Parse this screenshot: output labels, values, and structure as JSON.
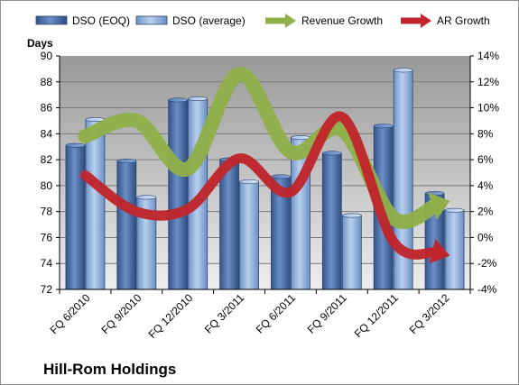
{
  "chart_data": {
    "type": "bar",
    "title": "Hill-Rom Holdings",
    "ylabel": "Days",
    "categories": [
      "FQ 6/2010",
      "FQ 9/2010",
      "FQ 12/2010",
      "FQ 3/2011",
      "FQ 6/2011",
      "FQ 9/2011",
      "FQ 12/2011",
      "FQ 3/2012"
    ],
    "ylim": [
      72,
      90
    ],
    "yticks": [
      "72",
      "74",
      "76",
      "78",
      "80",
      "82",
      "84",
      "86",
      "88",
      "90"
    ],
    "y2lim": [
      -0.04,
      0.14
    ],
    "y2ticks": [
      "-4%",
      "-2%",
      "0%",
      "2%",
      "4%",
      "6%",
      "8%",
      "10%",
      "12%",
      "14%"
    ],
    "series": [
      {
        "name": "DSO (EOQ)",
        "kind": "bar",
        "color": "#4A6FA5",
        "values": [
          83.1,
          81.9,
          86.6,
          82.0,
          80.7,
          82.5,
          84.6,
          79.4
        ]
      },
      {
        "name": "DSO (average)",
        "kind": "bar",
        "color": "#8FB0DC",
        "values": [
          85.1,
          79.1,
          86.7,
          80.3,
          83.7,
          77.7,
          88.9,
          78.1
        ]
      },
      {
        "name": "Revenue Growth",
        "kind": "line",
        "axis": "right",
        "color": "#8FAF4A",
        "values": [
          0.078,
          0.09,
          0.053,
          0.126,
          0.066,
          0.083,
          0.015,
          0.027
        ]
      },
      {
        "name": "AR Growth",
        "kind": "line",
        "axis": "right",
        "color": "#C0262C",
        "values": [
          0.048,
          0.02,
          0.022,
          0.061,
          0.035,
          0.093,
          -0.003,
          -0.013
        ]
      }
    ],
    "grid": true,
    "legend": "top"
  }
}
